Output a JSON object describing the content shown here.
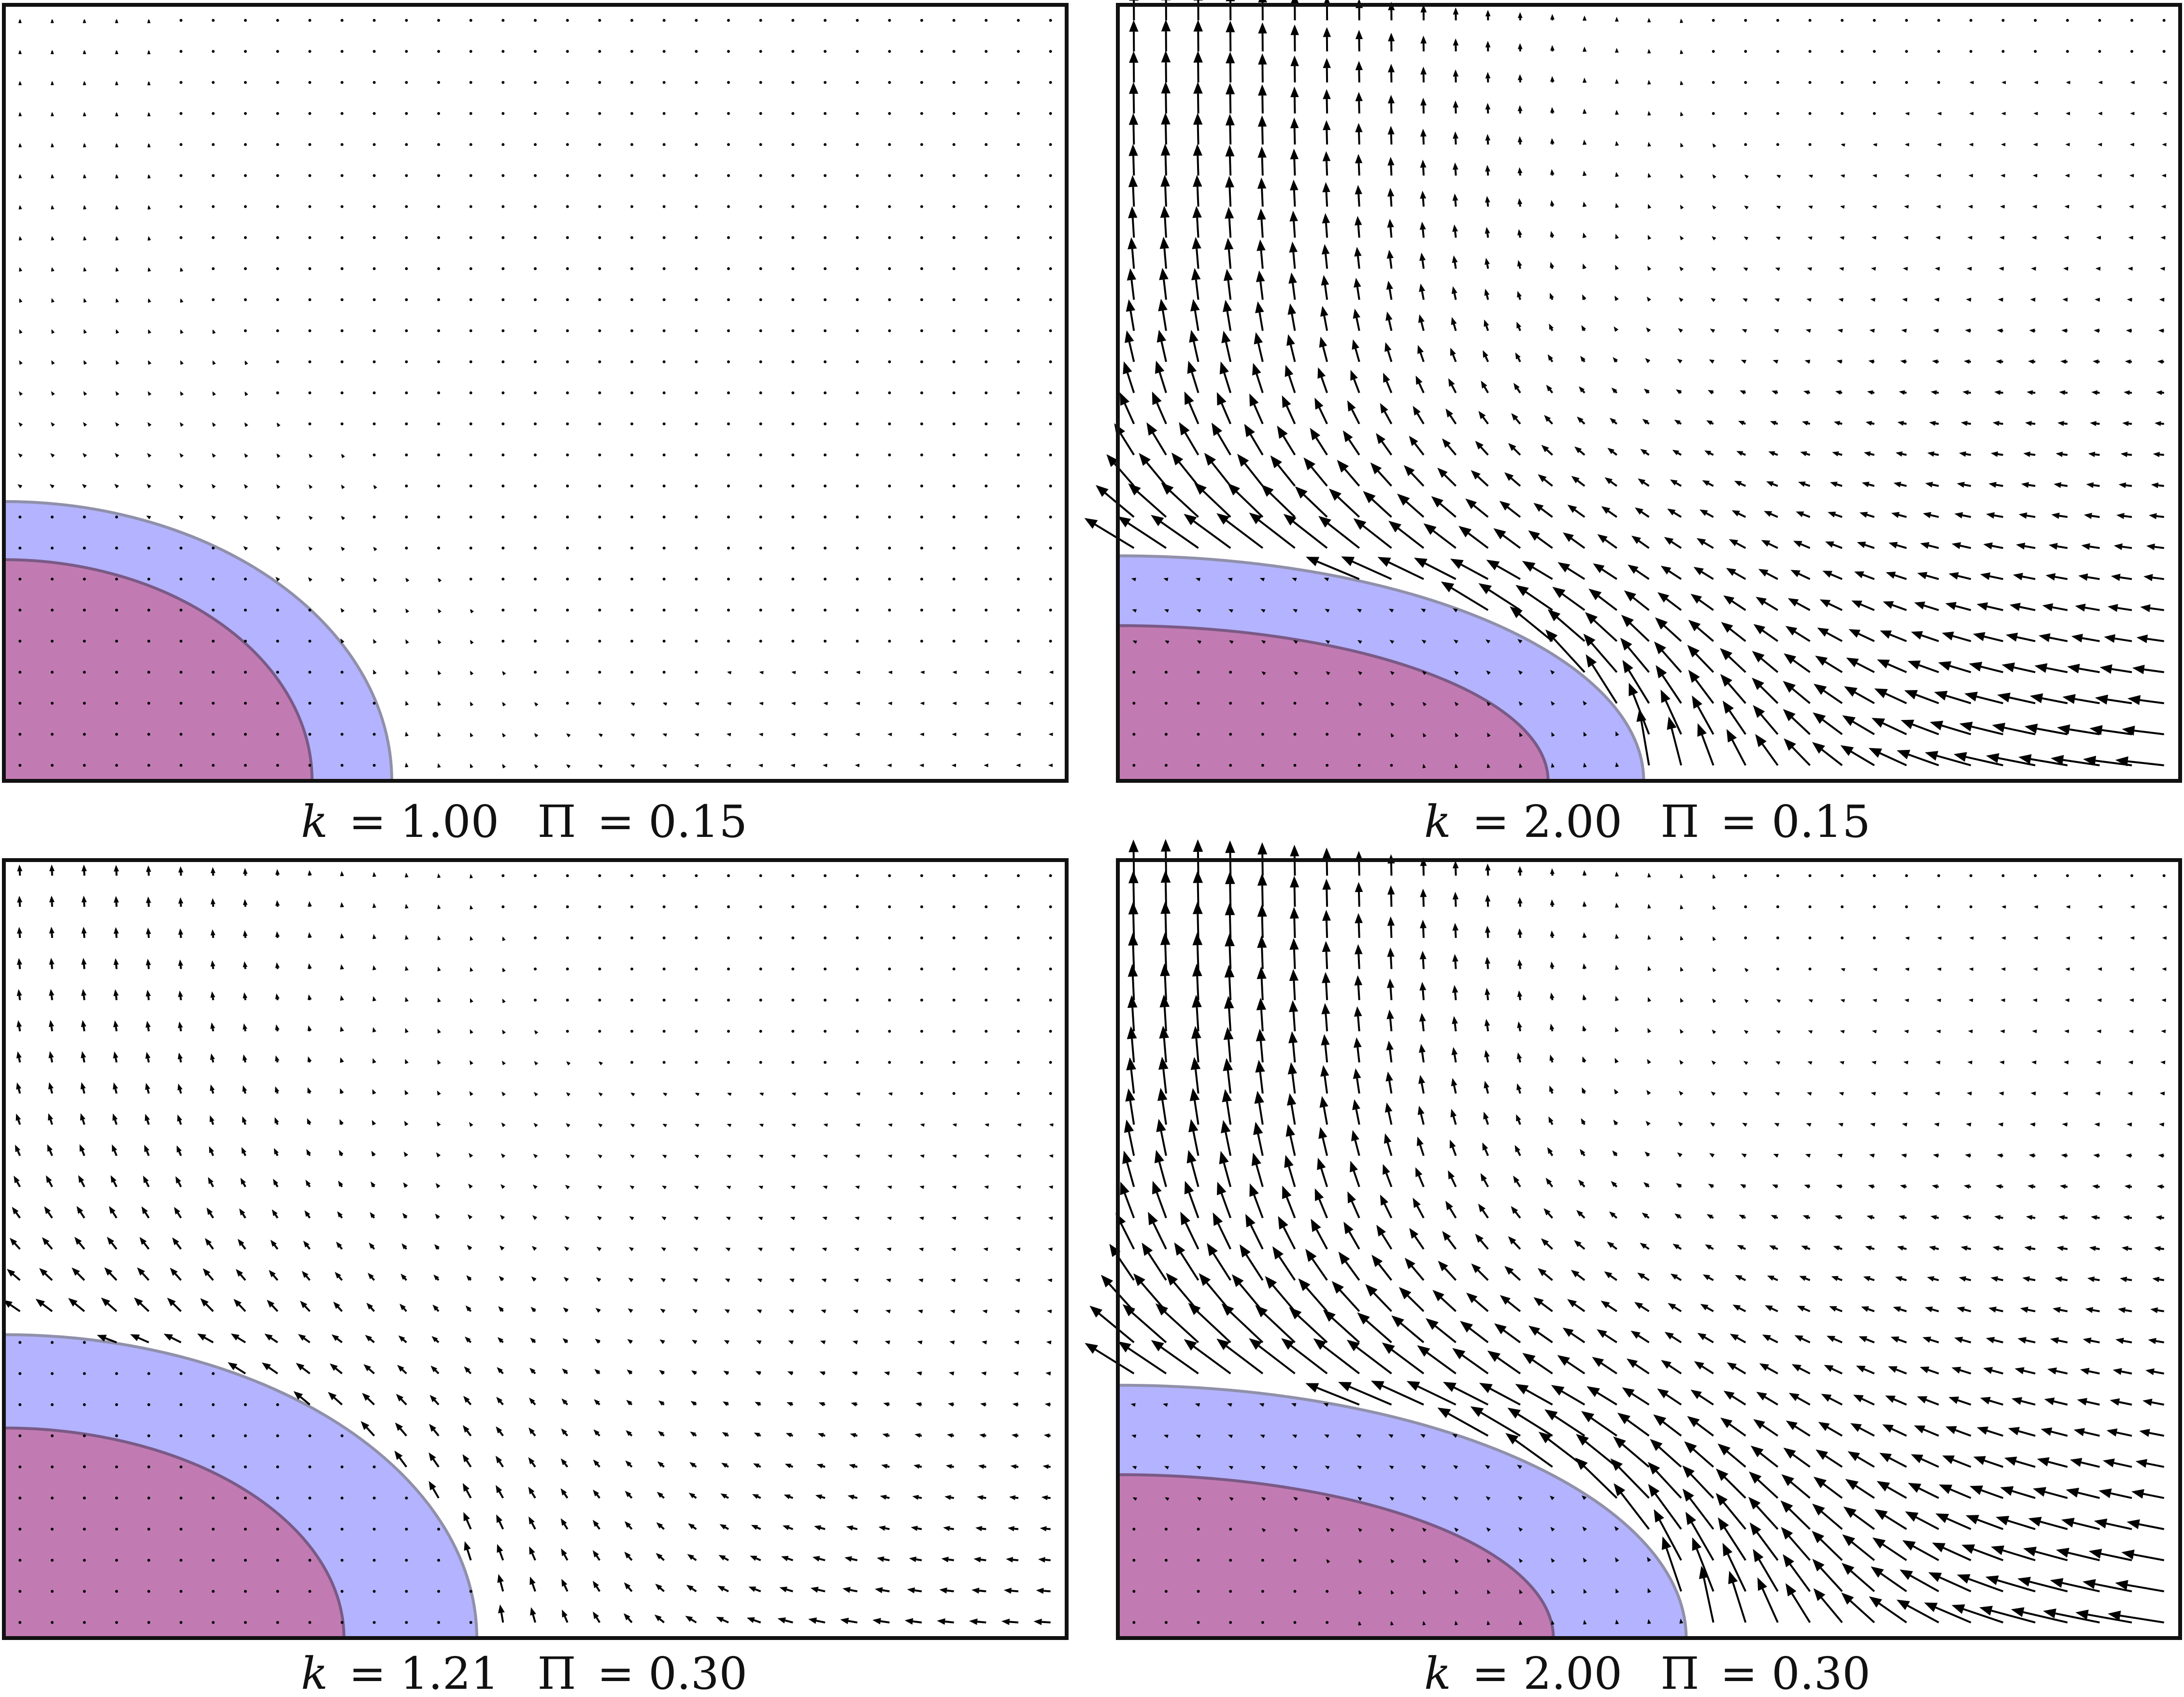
{
  "figure": {
    "panels": [
      {
        "id": "k1p015",
        "k_label": "k",
        "k_value": "= 1.00",
        "pi_label": "Π",
        "pi_value": "= 0.15",
        "k": 1.0,
        "pi": 0.15,
        "inner_radius": [
          0.29,
          0.285
        ],
        "outer_radius": [
          0.365,
          0.36
        ],
        "flow_strength": 0.05
      },
      {
        "id": "k2p015",
        "k_label": "k",
        "k_value": "= 2.00",
        "pi_label": "Π",
        "pi_value": "= 0.15",
        "k": 2.0,
        "pi": 0.15,
        "inner_radius": [
          0.405,
          0.2
        ],
        "outer_radius": [
          0.495,
          0.29
        ],
        "flow_strength": 1.0
      },
      {
        "id": "k121p030",
        "k_label": "k",
        "k_value": "= 1.21",
        "pi_label": "Π",
        "pi_value": "= 0.30",
        "k": 1.21,
        "pi": 0.3,
        "inner_radius": [
          0.32,
          0.27
        ],
        "outer_radius": [
          0.445,
          0.39
        ],
        "flow_strength": 0.35
      },
      {
        "id": "k2p030",
        "k_label": "k",
        "k_value": "= 2.00",
        "pi_label": "Π",
        "pi_value": "= 0.30",
        "k": 2.0,
        "pi": 0.3,
        "inner_radius": [
          0.41,
          0.21
        ],
        "outer_radius": [
          0.535,
          0.325
        ],
        "flow_strength": 1.15
      }
    ],
    "colors": {
      "inner_region": "#c27bb2",
      "inner_edge": "#7a5a86",
      "outer_region": "#b3b3ff",
      "outer_edge": "#9090aa",
      "arrow": "#000000",
      "frame": "#111111"
    }
  }
}
